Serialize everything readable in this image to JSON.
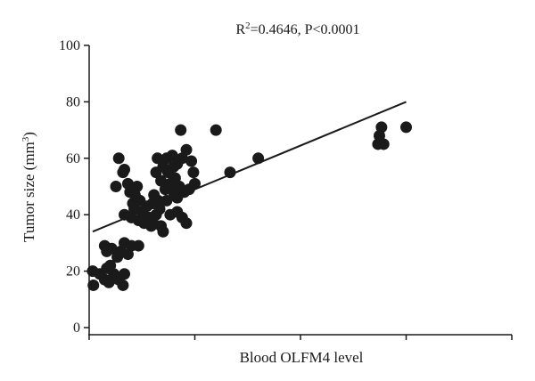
{
  "chart_data": {
    "type": "scatter",
    "title": "",
    "annotation": {
      "r2_label": "R",
      "r2_sup": "2",
      "r2_rest": "=0.4646, P<0.0001"
    },
    "xlabel": "Blood OLFM4 level",
    "ylabel": {
      "main": "Tumor size (mm",
      "sup": "3",
      "close": ")"
    },
    "xlim": [
      0,
      6
    ],
    "ylim": [
      0,
      100
    ],
    "y_ticks": [
      0,
      20,
      40,
      60,
      80,
      100
    ],
    "x_tick_count": 4,
    "grid": false,
    "legend": "none",
    "point_color": "#1a1a1a",
    "line_color": "#1a1a1a",
    "regression_line": {
      "x": [
        0.05,
        4.5
      ],
      "y": [
        34,
        80
      ]
    },
    "points": [
      {
        "x": 0.05,
        "y": 20
      },
      {
        "x": 0.06,
        "y": 15
      },
      {
        "x": 0.15,
        "y": 19
      },
      {
        "x": 0.22,
        "y": 17
      },
      {
        "x": 0.28,
        "y": 16
      },
      {
        "x": 0.25,
        "y": 21
      },
      {
        "x": 0.3,
        "y": 22
      },
      {
        "x": 0.35,
        "y": 19
      },
      {
        "x": 0.42,
        "y": 17
      },
      {
        "x": 0.48,
        "y": 15
      },
      {
        "x": 0.5,
        "y": 19
      },
      {
        "x": 0.22,
        "y": 29
      },
      {
        "x": 0.25,
        "y": 27
      },
      {
        "x": 0.32,
        "y": 28
      },
      {
        "x": 0.4,
        "y": 25
      },
      {
        "x": 0.45,
        "y": 27
      },
      {
        "x": 0.5,
        "y": 30
      },
      {
        "x": 0.55,
        "y": 26
      },
      {
        "x": 0.6,
        "y": 29
      },
      {
        "x": 0.7,
        "y": 29
      },
      {
        "x": 0.38,
        "y": 50
      },
      {
        "x": 0.42,
        "y": 60
      },
      {
        "x": 0.48,
        "y": 55
      },
      {
        "x": 0.5,
        "y": 56
      },
      {
        "x": 0.55,
        "y": 51
      },
      {
        "x": 0.58,
        "y": 48
      },
      {
        "x": 0.62,
        "y": 44
      },
      {
        "x": 0.65,
        "y": 47
      },
      {
        "x": 0.68,
        "y": 50
      },
      {
        "x": 0.72,
        "y": 45
      },
      {
        "x": 0.5,
        "y": 40
      },
      {
        "x": 0.6,
        "y": 39
      },
      {
        "x": 0.64,
        "y": 42
      },
      {
        "x": 0.7,
        "y": 38
      },
      {
        "x": 0.75,
        "y": 41
      },
      {
        "x": 0.78,
        "y": 37
      },
      {
        "x": 0.82,
        "y": 43
      },
      {
        "x": 0.85,
        "y": 39
      },
      {
        "x": 0.88,
        "y": 36
      },
      {
        "x": 0.9,
        "y": 44
      },
      {
        "x": 0.92,
        "y": 47
      },
      {
        "x": 0.95,
        "y": 40
      },
      {
        "x": 0.98,
        "y": 45
      },
      {
        "x": 1.0,
        "y": 42
      },
      {
        "x": 0.9,
        "y": 38
      },
      {
        "x": 0.95,
        "y": 55
      },
      {
        "x": 0.97,
        "y": 60
      },
      {
        "x": 1.02,
        "y": 52
      },
      {
        "x": 1.05,
        "y": 57
      },
      {
        "x": 1.08,
        "y": 49
      },
      {
        "x": 1.1,
        "y": 60
      },
      {
        "x": 1.12,
        "y": 55
      },
      {
        "x": 1.15,
        "y": 51
      },
      {
        "x": 1.18,
        "y": 61
      },
      {
        "x": 1.2,
        "y": 57
      },
      {
        "x": 1.22,
        "y": 53
      },
      {
        "x": 1.25,
        "y": 58
      },
      {
        "x": 1.28,
        "y": 50
      },
      {
        "x": 1.3,
        "y": 70
      },
      {
        "x": 1.32,
        "y": 60
      },
      {
        "x": 1.35,
        "y": 48
      },
      {
        "x": 1.38,
        "y": 63
      },
      {
        "x": 1.42,
        "y": 49
      },
      {
        "x": 1.45,
        "y": 59
      },
      {
        "x": 1.48,
        "y": 55
      },
      {
        "x": 1.5,
        "y": 51
      },
      {
        "x": 1.02,
        "y": 36
      },
      {
        "x": 1.05,
        "y": 34
      },
      {
        "x": 1.15,
        "y": 40
      },
      {
        "x": 1.25,
        "y": 41
      },
      {
        "x": 1.32,
        "y": 39
      },
      {
        "x": 1.38,
        "y": 37
      },
      {
        "x": 1.1,
        "y": 45
      },
      {
        "x": 1.2,
        "y": 48
      },
      {
        "x": 1.25,
        "y": 46
      },
      {
        "x": 1.8,
        "y": 70
      },
      {
        "x": 2.0,
        "y": 55
      },
      {
        "x": 2.4,
        "y": 60
      },
      {
        "x": 4.1,
        "y": 65
      },
      {
        "x": 4.12,
        "y": 68
      },
      {
        "x": 4.15,
        "y": 71
      },
      {
        "x": 4.18,
        "y": 65
      },
      {
        "x": 4.5,
        "y": 71
      }
    ]
  }
}
